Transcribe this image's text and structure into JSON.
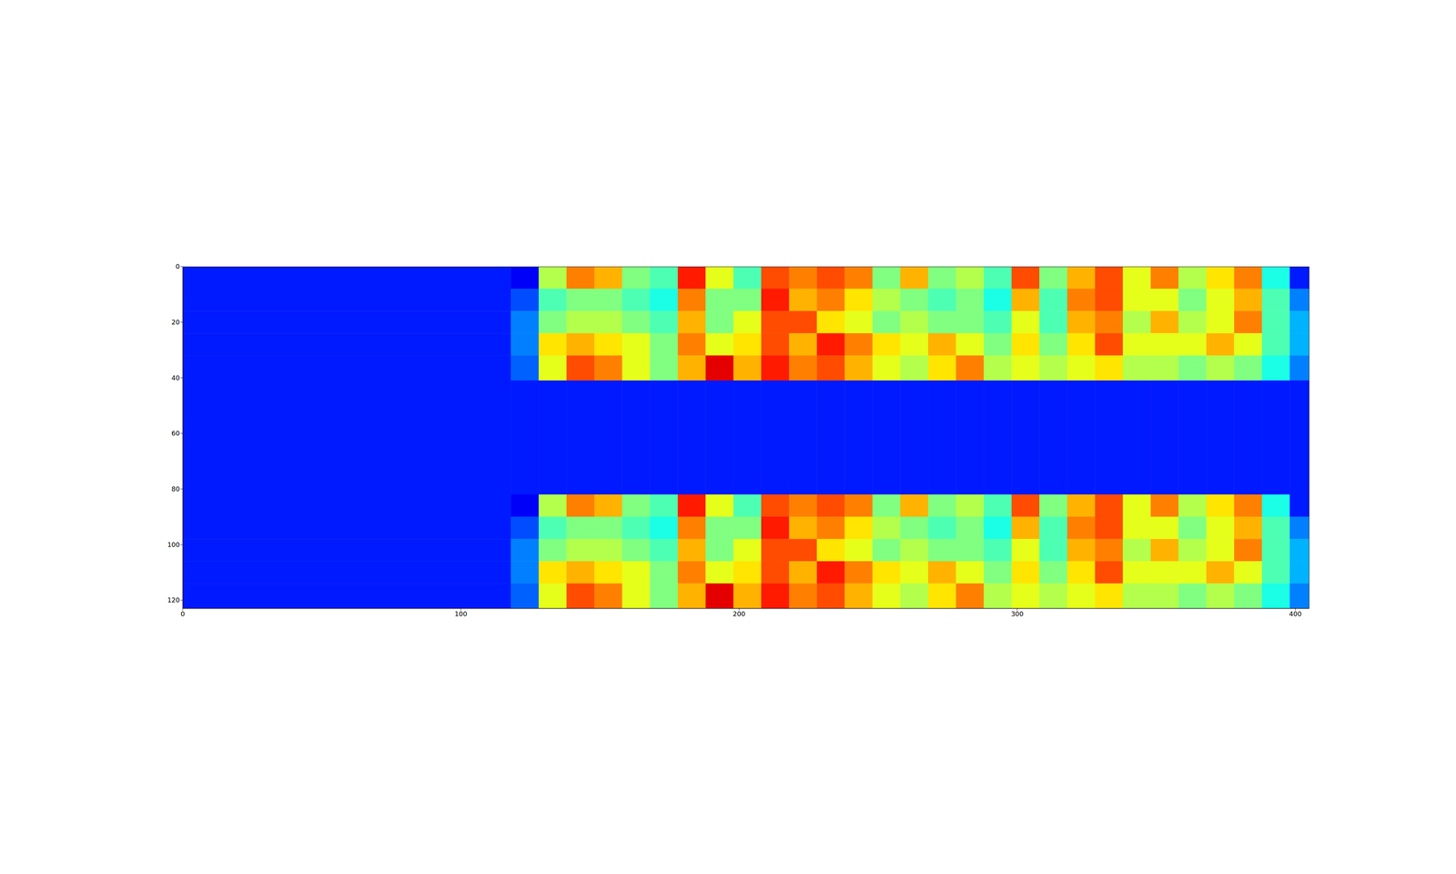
{
  "chart_data": {
    "type": "heatmap",
    "xlim": [
      0,
      405
    ],
    "ylim": [
      0,
      123
    ],
    "xticks": [
      0,
      100,
      200,
      300,
      400
    ],
    "yticks": [
      0,
      20,
      40,
      60,
      80,
      100,
      120
    ],
    "zlim": [
      0,
      1
    ],
    "x_edges": [
      0,
      118,
      128,
      138,
      148,
      158,
      168,
      178,
      188,
      198,
      208,
      218,
      228,
      238,
      248,
      258,
      268,
      278,
      288,
      298,
      308,
      318,
      328,
      338,
      348,
      358,
      368,
      378,
      388,
      398,
      405
    ],
    "y_edges": [
      0,
      8,
      16,
      24,
      32,
      41,
      82,
      90,
      98,
      106,
      114,
      123
    ],
    "cells": [
      [
        0.15,
        0.12,
        0.55,
        0.75,
        0.7,
        0.5,
        0.45,
        0.85,
        0.6,
        0.45,
        0.8,
        0.75,
        0.8,
        0.75,
        0.5,
        0.7,
        0.5,
        0.55,
        0.45,
        0.8,
        0.5,
        0.7,
        0.8,
        0.6,
        0.75,
        0.55,
        0.65,
        0.75,
        0.4,
        0.15
      ],
      [
        0.15,
        0.2,
        0.45,
        0.5,
        0.5,
        0.45,
        0.4,
        0.75,
        0.5,
        0.5,
        0.85,
        0.7,
        0.75,
        0.65,
        0.55,
        0.5,
        0.45,
        0.5,
        0.4,
        0.7,
        0.45,
        0.75,
        0.8,
        0.6,
        0.6,
        0.5,
        0.6,
        0.7,
        0.45,
        0.25
      ],
      [
        0.15,
        0.25,
        0.5,
        0.55,
        0.55,
        0.5,
        0.45,
        0.7,
        0.5,
        0.6,
        0.8,
        0.8,
        0.65,
        0.6,
        0.5,
        0.55,
        0.5,
        0.5,
        0.45,
        0.6,
        0.45,
        0.7,
        0.75,
        0.55,
        0.7,
        0.55,
        0.6,
        0.75,
        0.45,
        0.3
      ],
      [
        0.15,
        0.25,
        0.65,
        0.7,
        0.65,
        0.6,
        0.5,
        0.75,
        0.6,
        0.65,
        0.8,
        0.7,
        0.85,
        0.75,
        0.65,
        0.6,
        0.7,
        0.6,
        0.5,
        0.65,
        0.5,
        0.65,
        0.8,
        0.6,
        0.6,
        0.6,
        0.7,
        0.6,
        0.45,
        0.3
      ],
      [
        0.15,
        0.22,
        0.6,
        0.8,
        0.75,
        0.6,
        0.5,
        0.7,
        0.9,
        0.7,
        0.85,
        0.75,
        0.8,
        0.7,
        0.6,
        0.55,
        0.65,
        0.75,
        0.55,
        0.6,
        0.55,
        0.6,
        0.65,
        0.55,
        0.55,
        0.5,
        0.55,
        0.5,
        0.4,
        0.25
      ],
      [
        0.15,
        0.15,
        0.15,
        0.15,
        0.15,
        0.15,
        0.15,
        0.15,
        0.15,
        0.15,
        0.15,
        0.15,
        0.15,
        0.15,
        0.15,
        0.15,
        0.15,
        0.15,
        0.15,
        0.15,
        0.15,
        0.15,
        0.15,
        0.15,
        0.15,
        0.15,
        0.15,
        0.15,
        0.15,
        0.15
      ],
      [
        0.15,
        0.12,
        0.55,
        0.75,
        0.7,
        0.5,
        0.45,
        0.85,
        0.6,
        0.45,
        0.8,
        0.75,
        0.8,
        0.75,
        0.5,
        0.7,
        0.5,
        0.55,
        0.45,
        0.8,
        0.5,
        0.7,
        0.8,
        0.6,
        0.75,
        0.55,
        0.65,
        0.75,
        0.4,
        0.15
      ],
      [
        0.15,
        0.2,
        0.45,
        0.5,
        0.5,
        0.45,
        0.4,
        0.75,
        0.5,
        0.5,
        0.85,
        0.7,
        0.75,
        0.65,
        0.55,
        0.5,
        0.45,
        0.5,
        0.4,
        0.7,
        0.45,
        0.75,
        0.8,
        0.6,
        0.6,
        0.5,
        0.6,
        0.7,
        0.45,
        0.25
      ],
      [
        0.15,
        0.25,
        0.5,
        0.55,
        0.55,
        0.5,
        0.45,
        0.7,
        0.5,
        0.6,
        0.8,
        0.8,
        0.65,
        0.6,
        0.5,
        0.55,
        0.5,
        0.5,
        0.45,
        0.6,
        0.45,
        0.7,
        0.75,
        0.55,
        0.7,
        0.55,
        0.6,
        0.75,
        0.45,
        0.3
      ],
      [
        0.15,
        0.25,
        0.65,
        0.7,
        0.65,
        0.6,
        0.5,
        0.75,
        0.6,
        0.65,
        0.8,
        0.7,
        0.85,
        0.75,
        0.65,
        0.6,
        0.7,
        0.6,
        0.5,
        0.65,
        0.5,
        0.65,
        0.8,
        0.6,
        0.6,
        0.6,
        0.7,
        0.6,
        0.45,
        0.3
      ],
      [
        0.15,
        0.22,
        0.6,
        0.8,
        0.75,
        0.6,
        0.5,
        0.7,
        0.9,
        0.7,
        0.85,
        0.75,
        0.8,
        0.7,
        0.6,
        0.55,
        0.65,
        0.75,
        0.55,
        0.6,
        0.55,
        0.6,
        0.65,
        0.55,
        0.55,
        0.5,
        0.55,
        0.5,
        0.4,
        0.25
      ]
    ]
  }
}
